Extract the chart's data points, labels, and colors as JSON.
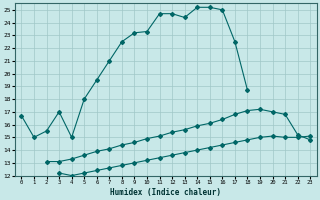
{
  "xlabel": "Humidex (Indice chaleur)",
  "xlim": [
    -0.5,
    23.5
  ],
  "ylim": [
    12,
    25.5
  ],
  "yticks": [
    12,
    13,
    14,
    15,
    16,
    17,
    18,
    19,
    20,
    21,
    22,
    23,
    24,
    25
  ],
  "xticks": [
    0,
    1,
    2,
    3,
    4,
    5,
    6,
    7,
    8,
    9,
    10,
    11,
    12,
    13,
    14,
    15,
    16,
    17,
    18,
    19,
    20,
    21,
    22,
    23
  ],
  "background_color": "#c8e8e8",
  "grid_color": "#a0c8c8",
  "line_color": "#006666",
  "curve1_x": [
    0,
    1,
    2,
    3,
    4,
    5,
    6,
    7,
    8,
    9,
    10,
    11,
    12,
    13,
    14,
    15,
    16,
    17,
    18
  ],
  "curve1_y": [
    16.7,
    15.0,
    15.5,
    17.0,
    15.0,
    18.0,
    19.5,
    21.0,
    22.5,
    23.2,
    23.3,
    24.7,
    24.7,
    24.4,
    25.2,
    25.2,
    25.0,
    22.5,
    18.7
  ],
  "curve2_x": [
    2,
    3,
    4,
    5,
    6,
    7,
    8,
    9,
    10,
    11,
    12,
    13,
    14,
    15,
    16,
    17,
    18,
    19,
    20,
    21,
    22,
    23
  ],
  "curve2_y": [
    13.1,
    13.1,
    13.3,
    13.6,
    13.9,
    14.1,
    14.4,
    14.6,
    14.9,
    15.1,
    15.4,
    15.6,
    15.9,
    16.1,
    16.4,
    16.8,
    17.1,
    17.2,
    17.0,
    16.8,
    15.2,
    14.8
  ],
  "curve3_x": [
    3,
    4,
    5,
    6,
    7,
    8,
    9,
    10,
    11,
    12,
    13,
    14,
    15,
    16,
    17,
    18,
    19,
    20,
    21,
    22,
    23
  ],
  "curve3_y": [
    12.2,
    12.0,
    12.2,
    12.4,
    12.6,
    12.8,
    13.0,
    13.2,
    13.4,
    13.6,
    13.8,
    14.0,
    14.2,
    14.4,
    14.6,
    14.8,
    15.0,
    15.1,
    15.0,
    15.0,
    15.1
  ]
}
